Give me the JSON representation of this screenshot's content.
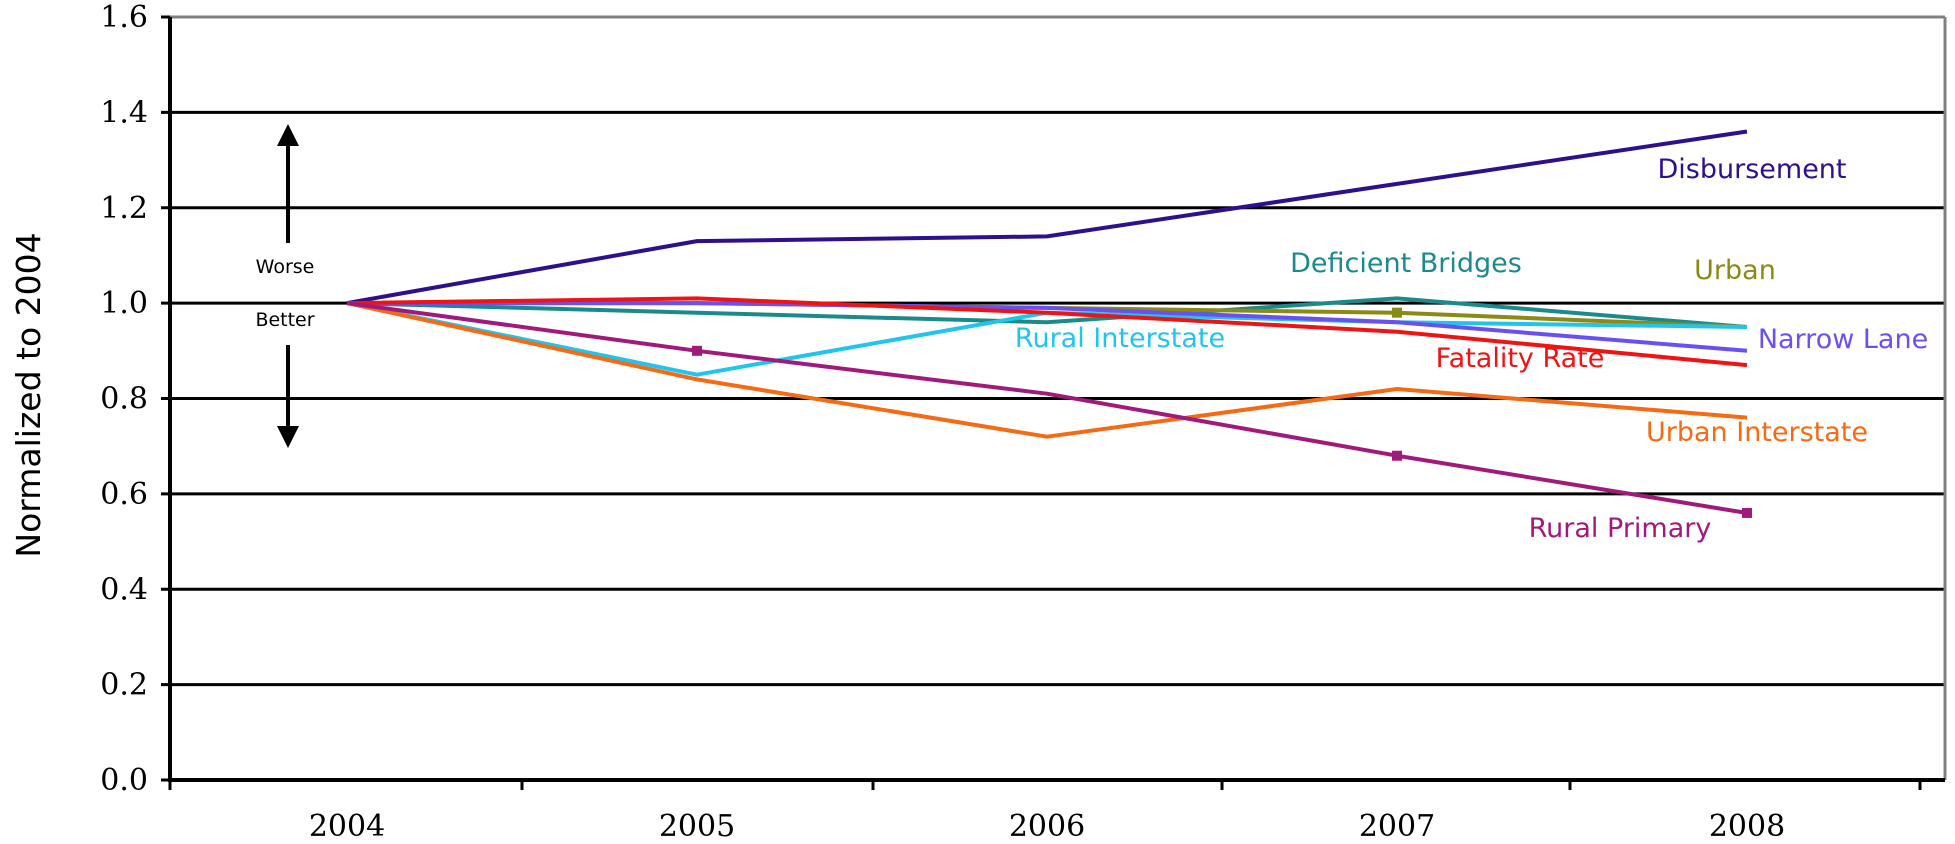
{
  "chart_data": {
    "type": "line",
    "title": "",
    "xlabel": "",
    "ylabel": "Normalized to 2004",
    "x": [
      "2004",
      "2005",
      "2006",
      "2007",
      "2008"
    ],
    "ylim": [
      0,
      1.6
    ],
    "yticks": [
      "0.0",
      "0.2",
      "0.4",
      "0.6",
      "0.8",
      "1.0",
      "1.2",
      "1.4",
      "1.6"
    ],
    "grid": true,
    "annotations": {
      "worse": "Worse",
      "better": "Better"
    },
    "series": [
      {
        "name": "Disbursement",
        "color": "#2e0f8c",
        "values": [
          1.0,
          1.13,
          1.14,
          1.25,
          1.36
        ]
      },
      {
        "name": "Deficient Bridges",
        "color": "#1a8a8a",
        "values": [
          1.0,
          0.98,
          0.96,
          1.01,
          0.95
        ]
      },
      {
        "name": "Urban",
        "color": "#8a8a14",
        "values": [
          1.0,
          1.0,
          0.99,
          0.98,
          0.95
        ]
      },
      {
        "name": "Rural Interstate",
        "color": "#22c4ec",
        "values": [
          1.0,
          0.85,
          0.98,
          0.96,
          0.95
        ]
      },
      {
        "name": "Narrow Lane",
        "color": "#6a50f0",
        "values": [
          1.0,
          1.0,
          0.99,
          0.96,
          0.9
        ]
      },
      {
        "name": "Fatality Rate",
        "color": "#ee1414",
        "values": [
          1.0,
          1.01,
          0.98,
          0.94,
          0.87
        ]
      },
      {
        "name": "Urban Interstate",
        "color": "#f56a14",
        "values": [
          1.0,
          0.84,
          0.72,
          0.82,
          0.76
        ]
      },
      {
        "name": "Rural Primary",
        "color": "#a01a7c",
        "values": [
          1.0,
          0.9,
          0.81,
          0.68,
          0.56
        ]
      }
    ]
  }
}
